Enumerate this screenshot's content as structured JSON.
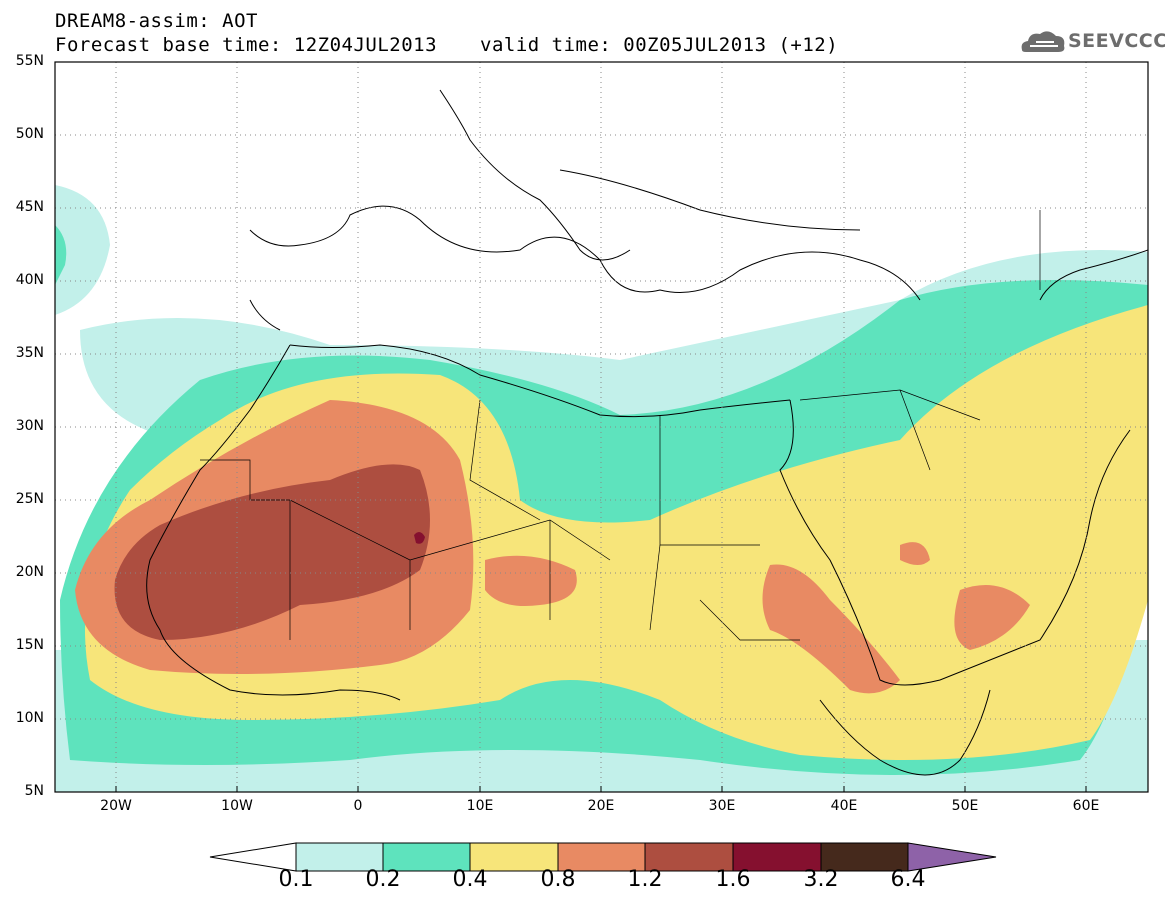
{
  "header": {
    "title": "DREAM8-assim: AOT",
    "base_time": "Forecast base time: 12Z04JUL2013",
    "valid_time": "valid time: 00Z05JUL2013 (+12)"
  },
  "logo": {
    "text": "SEEVCCC",
    "icon": "cloud-icon",
    "color": "#6d6d6d"
  },
  "map": {
    "projection": "equirectangular",
    "extent": {
      "lon_min": -25,
      "lon_max": 65,
      "lat_min": 5,
      "lat_max": 55
    },
    "latitude_labels": [
      "55N",
      "50N",
      "45N",
      "40N",
      "35N",
      "30N",
      "25N",
      "20N",
      "15N",
      "10N",
      "5N"
    ],
    "longitude_labels": [
      "20W",
      "10W",
      "0",
      "10E",
      "20E",
      "30E",
      "40E",
      "50E",
      "60E"
    ],
    "grid": "dotted",
    "variable": "Aerosol optical thickness",
    "features": {
      "max_core": {
        "lon": 5,
        "lat": 22.5,
        "class": "3.2"
      },
      "coastlines": true,
      "borders": true
    }
  },
  "colorbar": {
    "labels": [
      "0.1",
      "0.2",
      "0.4",
      "0.8",
      "1.2",
      "1.6",
      "3.2",
      "6.4"
    ],
    "colors": [
      "#ffffff",
      "#c2f0ea",
      "#5ee3bd",
      "#f7e57a",
      "#e88a63",
      "#ad4e40",
      "#85102f",
      "#45291c",
      "#8e62a8"
    ]
  },
  "chart_data": {
    "type": "heatmap",
    "title": "DREAM8-assim: AOT",
    "levels": [
      0.1,
      0.2,
      0.4,
      0.8,
      1.2,
      1.6,
      3.2,
      6.4
    ],
    "colors": [
      "#c2f0ea",
      "#5ee3bd",
      "#f7e57a",
      "#e88a63",
      "#ad4e40",
      "#85102f",
      "#45291c"
    ],
    "xlim": [
      -25,
      65
    ],
    "ylim": [
      5,
      55
    ]
  }
}
